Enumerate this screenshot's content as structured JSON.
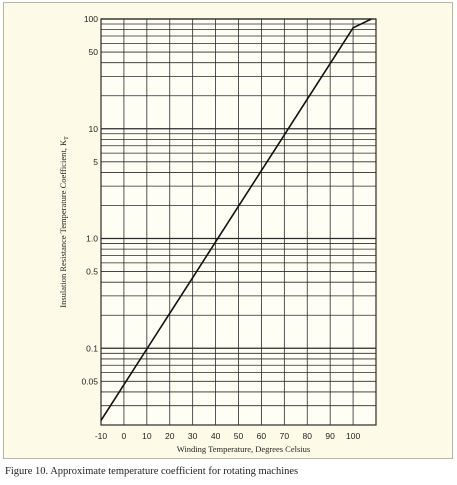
{
  "caption": "Figure 10. Approximate temperature coefficient for rotating machines",
  "chart_data": {
    "type": "line",
    "xlabel": "Winding Temperature, Degrees Celsius",
    "ylabel": "Insulation Resistance Temperature Coefficient, K",
    "ylabel_subscript": "T",
    "x_ticks": [
      -10,
      0,
      10,
      20,
      30,
      40,
      50,
      60,
      70,
      80,
      90,
      100
    ],
    "x_tick_labels": [
      "-10",
      "0",
      "10",
      "20",
      "30",
      "40",
      "50",
      "60",
      "70",
      "80",
      "90",
      "100"
    ],
    "xlim": [
      -10,
      110
    ],
    "y_scale": "log",
    "ylim": [
      0.02,
      100
    ],
    "y_ticks": [
      100,
      50,
      10,
      5,
      1.0,
      0.5,
      0.1,
      0.05
    ],
    "y_tick_labels": [
      "100",
      "50",
      "10",
      "5",
      "1.0",
      "0.5",
      "0.1",
      "0.05"
    ],
    "grid": true,
    "series": [
      {
        "x": [
          -10,
          0,
          10,
          20,
          30,
          40,
          50,
          60,
          70,
          80,
          90,
          100,
          108
        ],
        "y": [
          0.022,
          0.0466,
          0.0985,
          0.208,
          0.44,
          0.931,
          1.97,
          4.16,
          8.79,
          18.6,
          39.3,
          83.1,
          100
        ]
      }
    ],
    "colors": {
      "line": "#111111",
      "grid": "#2a2a2a",
      "background": "#fdfbe8"
    }
  }
}
